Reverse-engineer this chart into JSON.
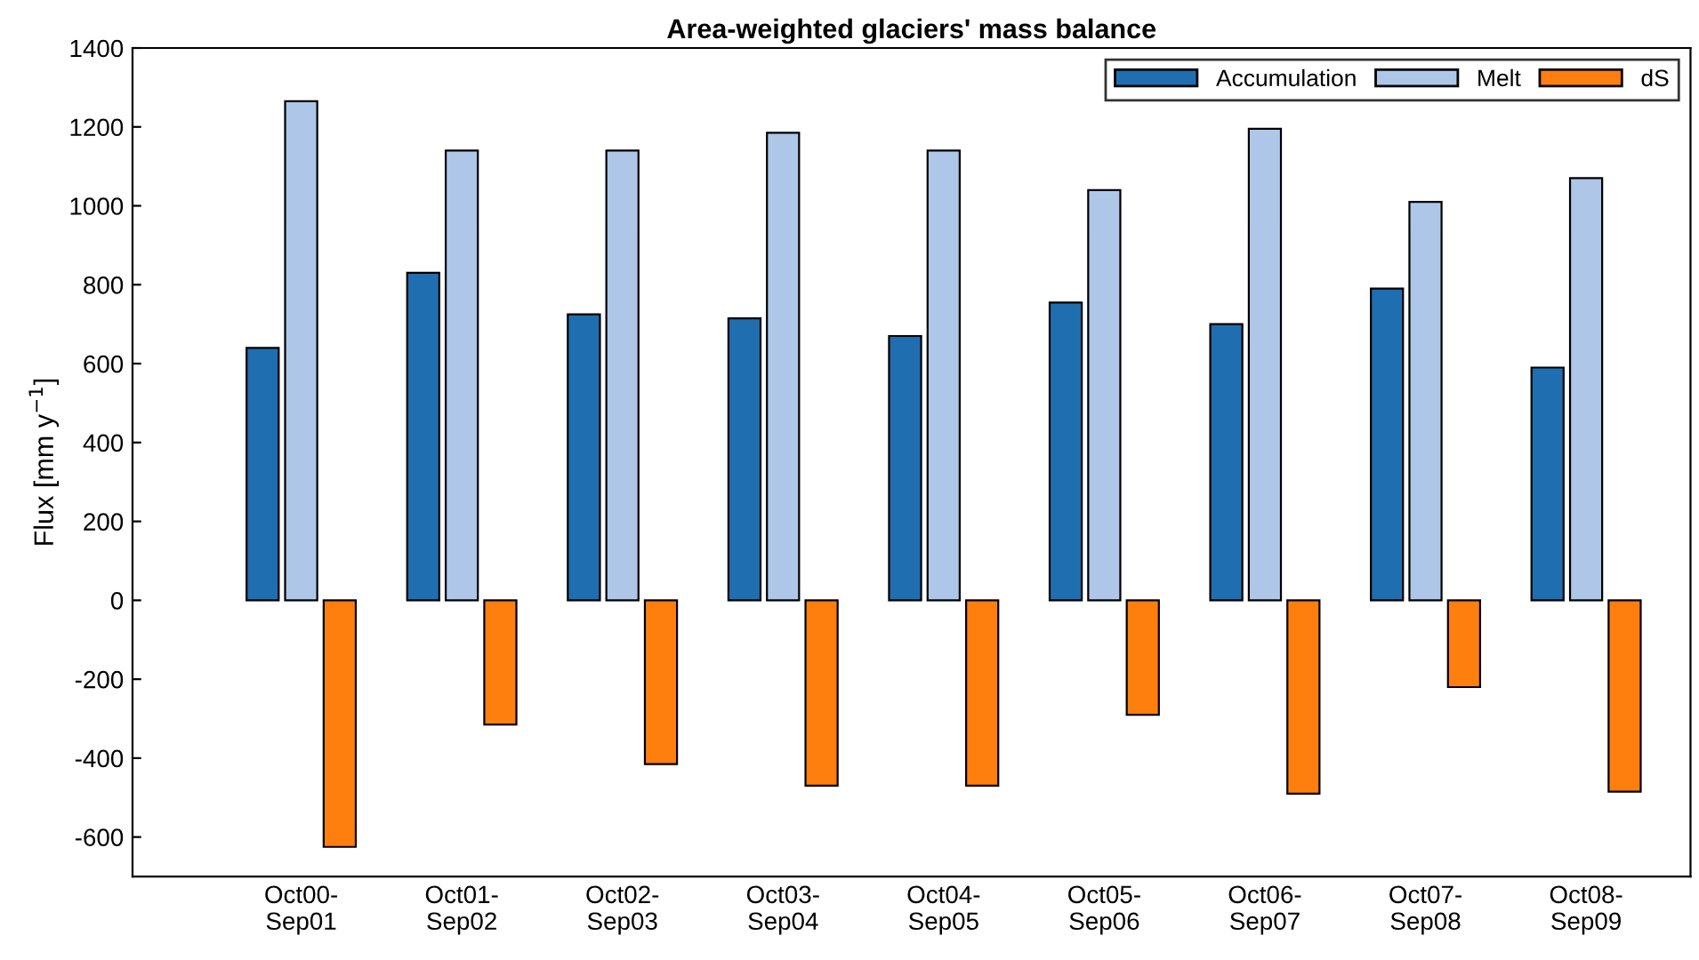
{
  "chart_data": {
    "type": "bar",
    "title": "Area-weighted glaciers' mass balance",
    "ylabel": "Flux [mm y$^{−1}$]",
    "categories": [
      "Oct00-\nSep01",
      "Oct01-\nSep02",
      "Oct02-\nSep03",
      "Oct03-\nSep04",
      "Oct04-\nSep05",
      "Oct05-\nSep06",
      "Oct06-\nSep07",
      "Oct07-\nSep08",
      "Oct08-\nSep09"
    ],
    "series": [
      {
        "name": "Accumulation",
        "color": "#1f6eb0",
        "values": [
          640,
          830,
          725,
          715,
          670,
          755,
          700,
          790,
          590
        ]
      },
      {
        "name": "Melt",
        "color": "#aec7e8",
        "values": [
          1265,
          1140,
          1140,
          1185,
          1140,
          1040,
          1195,
          1010,
          1070
        ]
      },
      {
        "name": "dS",
        "color": "#ff7f0e",
        "values": [
          -625,
          -315,
          -415,
          -470,
          -470,
          -290,
          -490,
          -220,
          -485
        ]
      }
    ],
    "ylim": [
      -700,
      1400
    ],
    "yticks": [
      -600,
      -400,
      -200,
      0,
      200,
      400,
      600,
      800,
      1000,
      1200,
      1400
    ],
    "grid": false,
    "legend": "top right"
  }
}
